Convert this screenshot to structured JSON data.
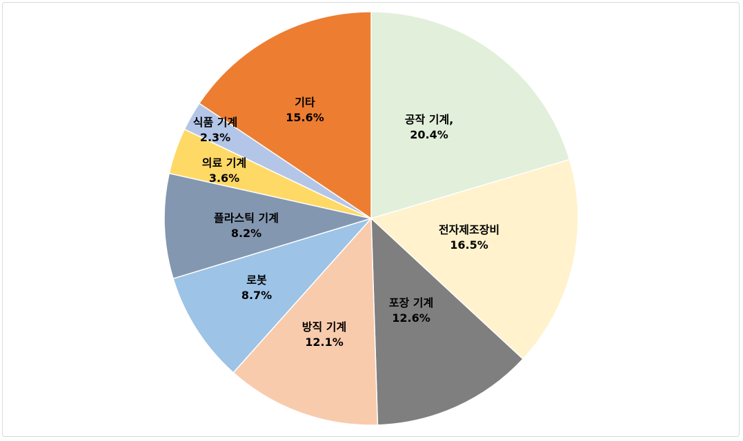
{
  "chart_data": {
    "type": "pie",
    "title": "",
    "start_angle": "12 o'clock, clockwise",
    "legend": "none",
    "slices": [
      {
        "label": "공작 기계,",
        "value": 20.4,
        "value_label": "20.4%",
        "color": "#E2EFDA"
      },
      {
        "label": "전자제조장비",
        "value": 16.5,
        "value_label": "16.5%",
        "color": "#FFF2CC"
      },
      {
        "label": "포장 기계",
        "value": 12.6,
        "value_label": "12.6%",
        "color": "#7F7F7F"
      },
      {
        "label": "방직 기계",
        "value": 12.1,
        "value_label": "12.1%",
        "color": "#F8CBAD"
      },
      {
        "label": "로봇",
        "value": 8.7,
        "value_label": "8.7%",
        "color": "#9DC3E6"
      },
      {
        "label": "플라스틱 기계",
        "value": 8.2,
        "value_label": "8.2%",
        "color": "#8497B0"
      },
      {
        "label": "의료 기계",
        "value": 3.6,
        "value_label": "3.6%",
        "color": "#FFD966"
      },
      {
        "label": "식품 기계",
        "value": 2.3,
        "value_label": "2.3%",
        "color": "#B4C6E7"
      },
      {
        "label": "기타",
        "value": 15.6,
        "value_label": "15.6%",
        "color": "#ED7D31"
      }
    ]
  }
}
